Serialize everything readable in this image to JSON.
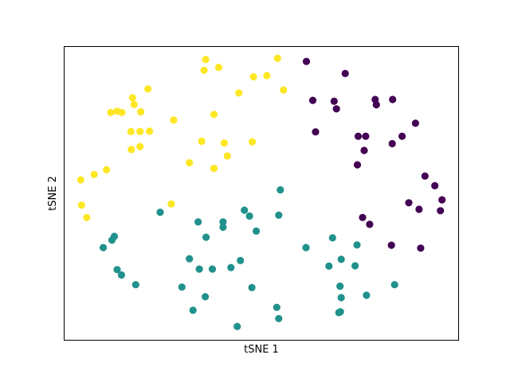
{
  "chart_data": {
    "type": "scatter",
    "title": "",
    "xlabel": "tSNE 1",
    "ylabel": "tSNE 2",
    "xlim": [
      0,
      100
    ],
    "ylim": [
      0,
      100
    ],
    "xticks": false,
    "yticks": false,
    "grid": false,
    "series": [
      {
        "color": "#fde725",
        "points": [
          [
            35.9,
            95.5
          ],
          [
            35.5,
            91.8
          ],
          [
            39.2,
            92.8
          ],
          [
            54.1,
            95.9
          ],
          [
            48.0,
            89.6
          ],
          [
            51.4,
            90.0
          ],
          [
            21.3,
            85.5
          ],
          [
            44.3,
            84.1
          ],
          [
            55.6,
            85.1
          ],
          [
            17.4,
            82.5
          ],
          [
            17.8,
            80.2
          ],
          [
            11.9,
            77.5
          ],
          [
            13.5,
            77.9
          ],
          [
            14.7,
            77.5
          ],
          [
            19.5,
            77.7
          ],
          [
            38.0,
            76.8
          ],
          [
            27.8,
            74.9
          ],
          [
            19.3,
            71.0
          ],
          [
            21.7,
            71.1
          ],
          [
            17.0,
            71.0
          ],
          [
            34.9,
            67.7
          ],
          [
            40.6,
            67.1
          ],
          [
            47.7,
            67.5
          ],
          [
            19.3,
            65.9
          ],
          [
            17.1,
            64.9
          ],
          [
            41.4,
            62.7
          ],
          [
            31.8,
            60.4
          ],
          [
            38.0,
            58.5
          ],
          [
            10.8,
            58.0
          ],
          [
            7.7,
            56.4
          ],
          [
            4.3,
            54.6
          ],
          [
            27.2,
            46.4
          ],
          [
            4.5,
            46.0
          ],
          [
            5.8,
            41.8
          ]
        ]
      },
      {
        "color": "#440154",
        "points": [
          [
            61.4,
            94.8
          ],
          [
            71.2,
            90.7
          ],
          [
            63.0,
            81.6
          ],
          [
            68.4,
            81.3
          ],
          [
            78.8,
            81.9
          ],
          [
            83.2,
            81.9
          ],
          [
            79.1,
            80.1
          ],
          [
            69.0,
            78.7
          ],
          [
            89.0,
            73.8
          ],
          [
            63.7,
            70.9
          ],
          [
            74.5,
            69.4
          ],
          [
            76.4,
            69.4
          ],
          [
            85.6,
            69.4
          ],
          [
            83.1,
            66.9
          ],
          [
            76.0,
            64.6
          ],
          [
            74.3,
            59.7
          ],
          [
            91.4,
            55.9
          ],
          [
            93.9,
            52.6
          ],
          [
            95.7,
            47.8
          ],
          [
            87.3,
            46.8
          ],
          [
            89.9,
            44.6
          ],
          [
            95.3,
            44.1
          ],
          [
            75.6,
            41.8
          ],
          [
            77.4,
            39.5
          ],
          [
            82.9,
            32.4
          ],
          [
            90.3,
            31.4
          ]
        ]
      },
      {
        "color": "#21918c",
        "points": [
          [
            54.8,
            51.2
          ],
          [
            24.4,
            43.6
          ],
          [
            45.7,
            44.3
          ],
          [
            47.0,
            42.3
          ],
          [
            54.4,
            42.6
          ],
          [
            34.0,
            40.3
          ],
          [
            40.3,
            40.3
          ],
          [
            40.3,
            38.5
          ],
          [
            48.7,
            37.2
          ],
          [
            12.8,
            35.4
          ],
          [
            36.0,
            35.1
          ],
          [
            12.2,
            34.1
          ],
          [
            68.0,
            34.9
          ],
          [
            10.0,
            31.6
          ],
          [
            61.3,
            31.6
          ],
          [
            74.2,
            32.5
          ],
          [
            31.8,
            27.8
          ],
          [
            44.7,
            27.2
          ],
          [
            70.2,
            27.6
          ],
          [
            67.1,
            25.3
          ],
          [
            13.5,
            24.1
          ],
          [
            37.6,
            24.3
          ],
          [
            42.3,
            24.8
          ],
          [
            34.3,
            24.3
          ],
          [
            14.6,
            22.3
          ],
          [
            73.7,
            25.4
          ],
          [
            18.2,
            19.0
          ],
          [
            29.9,
            18.2
          ],
          [
            47.6,
            18.0
          ],
          [
            69.9,
            18.5
          ],
          [
            83.7,
            19.0
          ],
          [
            35.8,
            14.9
          ],
          [
            70.2,
            14.6
          ],
          [
            76.6,
            15.4
          ],
          [
            53.9,
            11.3
          ],
          [
            32.7,
            10.3
          ],
          [
            70.0,
            9.8
          ],
          [
            69.6,
            9.5
          ],
          [
            54.4,
            7.5
          ],
          [
            43.9,
            4.8
          ]
        ]
      }
    ]
  }
}
